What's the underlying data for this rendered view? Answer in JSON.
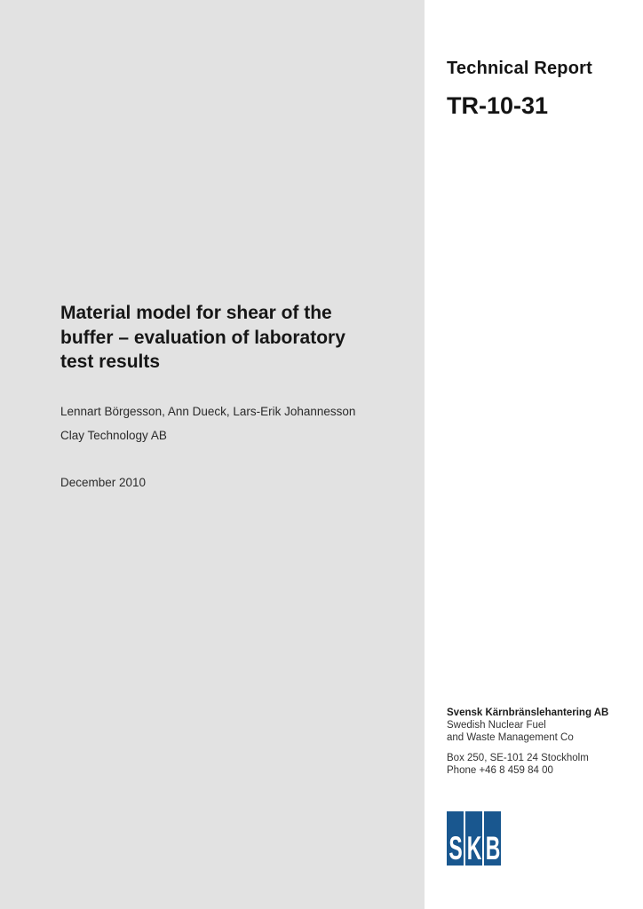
{
  "page": {
    "left_panel_color": "#e2e2e2",
    "right_panel_color": "#ffffff"
  },
  "header": {
    "report_type": "Technical Report",
    "report_number": "TR-10-31"
  },
  "title_block": {
    "lines": [
      "Material model for shear of the",
      "buffer – evaluation of laboratory",
      "test results"
    ],
    "authors": "Lennart Börgesson, Ann Dueck, Lars-Erik Johannesson",
    "affiliation": "Clay Technology AB",
    "date": "December 2010"
  },
  "publisher": {
    "company": "Svensk Kärnbränslehantering AB",
    "name_line1": "Swedish Nuclear Fuel",
    "name_line2": "and Waste Management Co",
    "address": "Box 250, SE-101 24 Stockholm",
    "phone": "Phone +46 8 459 84 00"
  },
  "logo": {
    "letters": [
      "S",
      "K",
      "B"
    ],
    "bar_color": "#19578f",
    "letter_color": "#ffffff"
  }
}
